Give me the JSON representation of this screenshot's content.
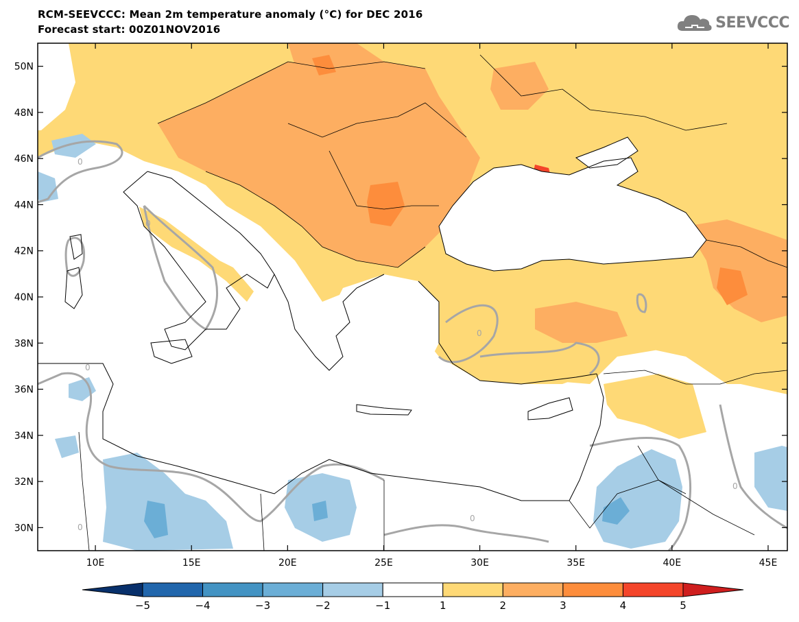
{
  "header": {
    "title": "RCM-SEEVCCC: Mean 2m temperature anomaly (°C) for DEC 2016",
    "subtitle": "Forecast start: 00Z01NOV2016",
    "logo_text": "SEEVCCC"
  },
  "map": {
    "lon_range": [
      7,
      46
    ],
    "lat_range": [
      29,
      51
    ],
    "lat_ticks": [
      {
        "value": 30,
        "label": "30N"
      },
      {
        "value": 32,
        "label": "32N"
      },
      {
        "value": 34,
        "label": "34N"
      },
      {
        "value": 36,
        "label": "36N"
      },
      {
        "value": 38,
        "label": "38N"
      },
      {
        "value": 40,
        "label": "40N"
      },
      {
        "value": 42,
        "label": "42N"
      },
      {
        "value": 44,
        "label": "44N"
      },
      {
        "value": 46,
        "label": "46N"
      },
      {
        "value": 48,
        "label": "48N"
      },
      {
        "value": 50,
        "label": "50N"
      }
    ],
    "lon_ticks": [
      {
        "value": 10,
        "label": "10E"
      },
      {
        "value": 15,
        "label": "15E"
      },
      {
        "value": 20,
        "label": "20E"
      },
      {
        "value": 25,
        "label": "25E"
      },
      {
        "value": 30,
        "label": "30E"
      },
      {
        "value": 35,
        "label": "35E"
      },
      {
        "value": 40,
        "label": "40E"
      },
      {
        "value": 45,
        "label": "45E"
      }
    ],
    "zero_contour_label": "0"
  },
  "colorbar": {
    "levels": [
      "−5",
      "−4",
      "−3",
      "−2",
      "−1",
      "1",
      "2",
      "3",
      "4",
      "5"
    ],
    "colors": [
      "#08306b",
      "#2166ac",
      "#4393c3",
      "#6baed6",
      "#a6cde6",
      "#ffffff",
      "#fed976",
      "#fdae61",
      "#fd8d3c",
      "#f4452a",
      "#cf1e1e"
    ]
  }
}
